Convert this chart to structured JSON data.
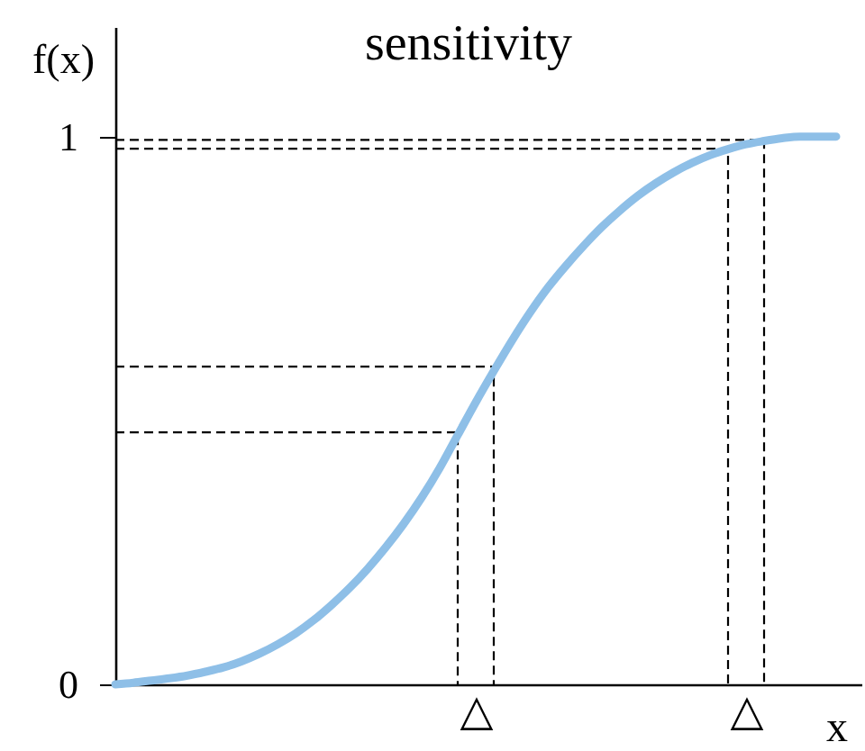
{
  "chart_data": {
    "type": "line",
    "title": "sensitivity",
    "xlabel": "x",
    "ylabel": "f(x)",
    "categories": [
      null,
      null,
      null,
      null,
      null,
      null,
      null,
      null,
      null,
      null,
      null,
      null,
      null,
      null,
      null,
      null,
      null,
      null,
      null,
      null,
      "△",
      null,
      null,
      null,
      null,
      null,
      null,
      null,
      null,
      null,
      null,
      null,
      null,
      null,
      null,
      "△",
      null,
      null,
      null,
      null,
      null
    ],
    "ylim": [
      0,
      1.2
    ],
    "yticks": [
      0,
      1
    ],
    "grid": false,
    "series": [
      {
        "type": "step",
        "color": "#000000",
        "line_style": "dashed",
        "values": [
          0.46,
          0.46,
          0.46,
          0.46,
          0.46,
          0.46,
          0.46,
          0.46,
          0.46,
          0.46,
          0.46,
          0.46,
          0.46,
          0.46,
          0.46,
          0.46,
          0.46,
          0.46,
          0.46,
          0,
          null,
          null,
          null,
          null,
          null,
          null,
          null,
          null,
          null,
          null,
          null,
          null,
          null,
          null,
          null,
          null,
          null,
          null,
          null,
          null,
          null
        ]
      },
      {
        "type": "step",
        "color": "#000000",
        "line_style": "dashed",
        "values": [
          0.58,
          0.58,
          0.58,
          0.58,
          0.58,
          0.58,
          0.58,
          0.58,
          0.58,
          0.58,
          0.58,
          0.58,
          0.58,
          0.58,
          0.58,
          0.58,
          0.58,
          0.58,
          0.58,
          0.58,
          0.58,
          0,
          null,
          null,
          null,
          null,
          null,
          null,
          null,
          null,
          null,
          null,
          null,
          null,
          null,
          null,
          null,
          null,
          null,
          null,
          null
        ]
      },
      {
        "type": "step",
        "color": "#000000",
        "line_style": "dashed",
        "values": [
          0.978,
          0.978,
          0.978,
          0.978,
          0.978,
          0.978,
          0.978,
          0.978,
          0.978,
          0.978,
          0.978,
          0.978,
          0.978,
          0.978,
          0.978,
          0.978,
          0.978,
          0.978,
          0.978,
          0.978,
          0.978,
          0.978,
          0.978,
          0.978,
          0.978,
          0.978,
          0.978,
          0.978,
          0.978,
          0.978,
          0.978,
          0.978,
          0.978,
          0.978,
          0,
          null,
          null,
          null,
          null,
          null,
          null
        ]
      },
      {
        "type": "step",
        "color": "#000000",
        "line_style": "dashed",
        "values": [
          0.994,
          0.994,
          0.994,
          0.994,
          0.994,
          0.994,
          0.994,
          0.994,
          0.994,
          0.994,
          0.994,
          0.994,
          0.994,
          0.994,
          0.994,
          0.994,
          0.994,
          0.994,
          0.994,
          0.994,
          0.994,
          0.994,
          0.994,
          0.994,
          0.994,
          0.994,
          0.994,
          0.994,
          0.994,
          0.994,
          0.994,
          0.994,
          0.994,
          0.994,
          0.994,
          0.994,
          0,
          null,
          null,
          null,
          null
        ]
      },
      {
        "color": "#8ebfe7",
        "line_style": "solid",
        "values": [
          0.0,
          0.003,
          0.007,
          0.011,
          0.016,
          0.023,
          0.031,
          0.042,
          0.056,
          0.073,
          0.093,
          0.117,
          0.145,
          0.176,
          0.211,
          0.25,
          0.293,
          0.341,
          0.395,
          0.455,
          0.515,
          0.572,
          0.627,
          0.678,
          0.724,
          0.764,
          0.801,
          0.835,
          0.865,
          0.892,
          0.915,
          0.935,
          0.952,
          0.966,
          0.977,
          0.986,
          0.992,
          0.997,
          1.0,
          1.0,
          1.0
        ]
      }
    ]
  }
}
